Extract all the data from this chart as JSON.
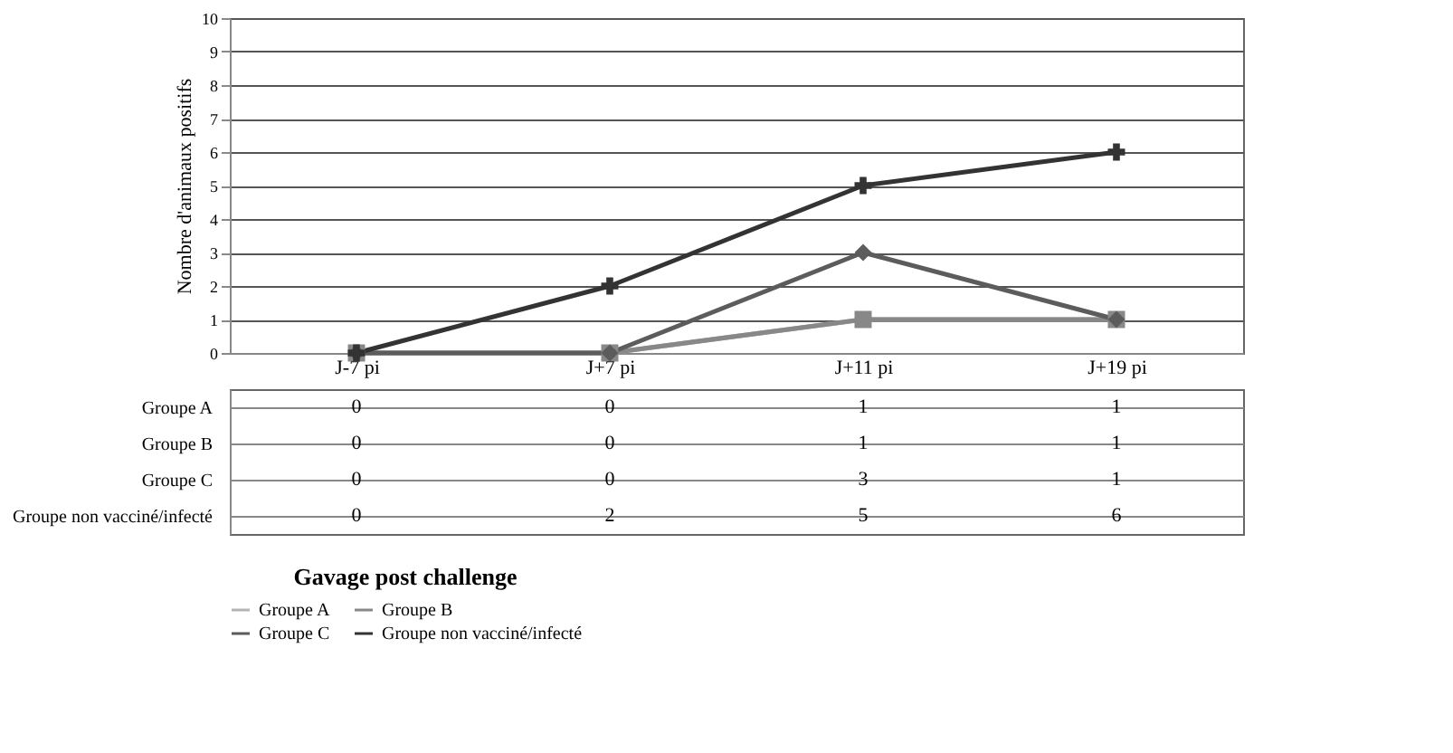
{
  "chart_data": {
    "type": "line",
    "ylabel": "Nombre d'animaux positifs",
    "legend_title": "Gavage post challenge",
    "categories": [
      "J-7 pi",
      "J+7 pi",
      "J+11 pi",
      "J+19 pi"
    ],
    "series": [
      {
        "name": "Groupe A",
        "color": "#b4b4b4",
        "marker": "triangle",
        "values": [
          0,
          0,
          1,
          1
        ]
      },
      {
        "name": "Groupe B",
        "color": "#888888",
        "marker": "square",
        "values": [
          0,
          0,
          1,
          1
        ]
      },
      {
        "name": "Groupe C",
        "color": "#5c5c5c",
        "marker": "diamond",
        "values": [
          0,
          0,
          3,
          1
        ]
      },
      {
        "name": "Groupe non vacciné/infecté",
        "color": "#333333",
        "marker": "cross",
        "values": [
          0,
          2,
          5,
          6
        ]
      }
    ],
    "ylim": [
      0,
      10
    ],
    "yticks": [
      0,
      1,
      2,
      3,
      4,
      5,
      6,
      7,
      8,
      9,
      10
    ],
    "grid": "y",
    "legend": "bottom",
    "data_labels": true
  }
}
